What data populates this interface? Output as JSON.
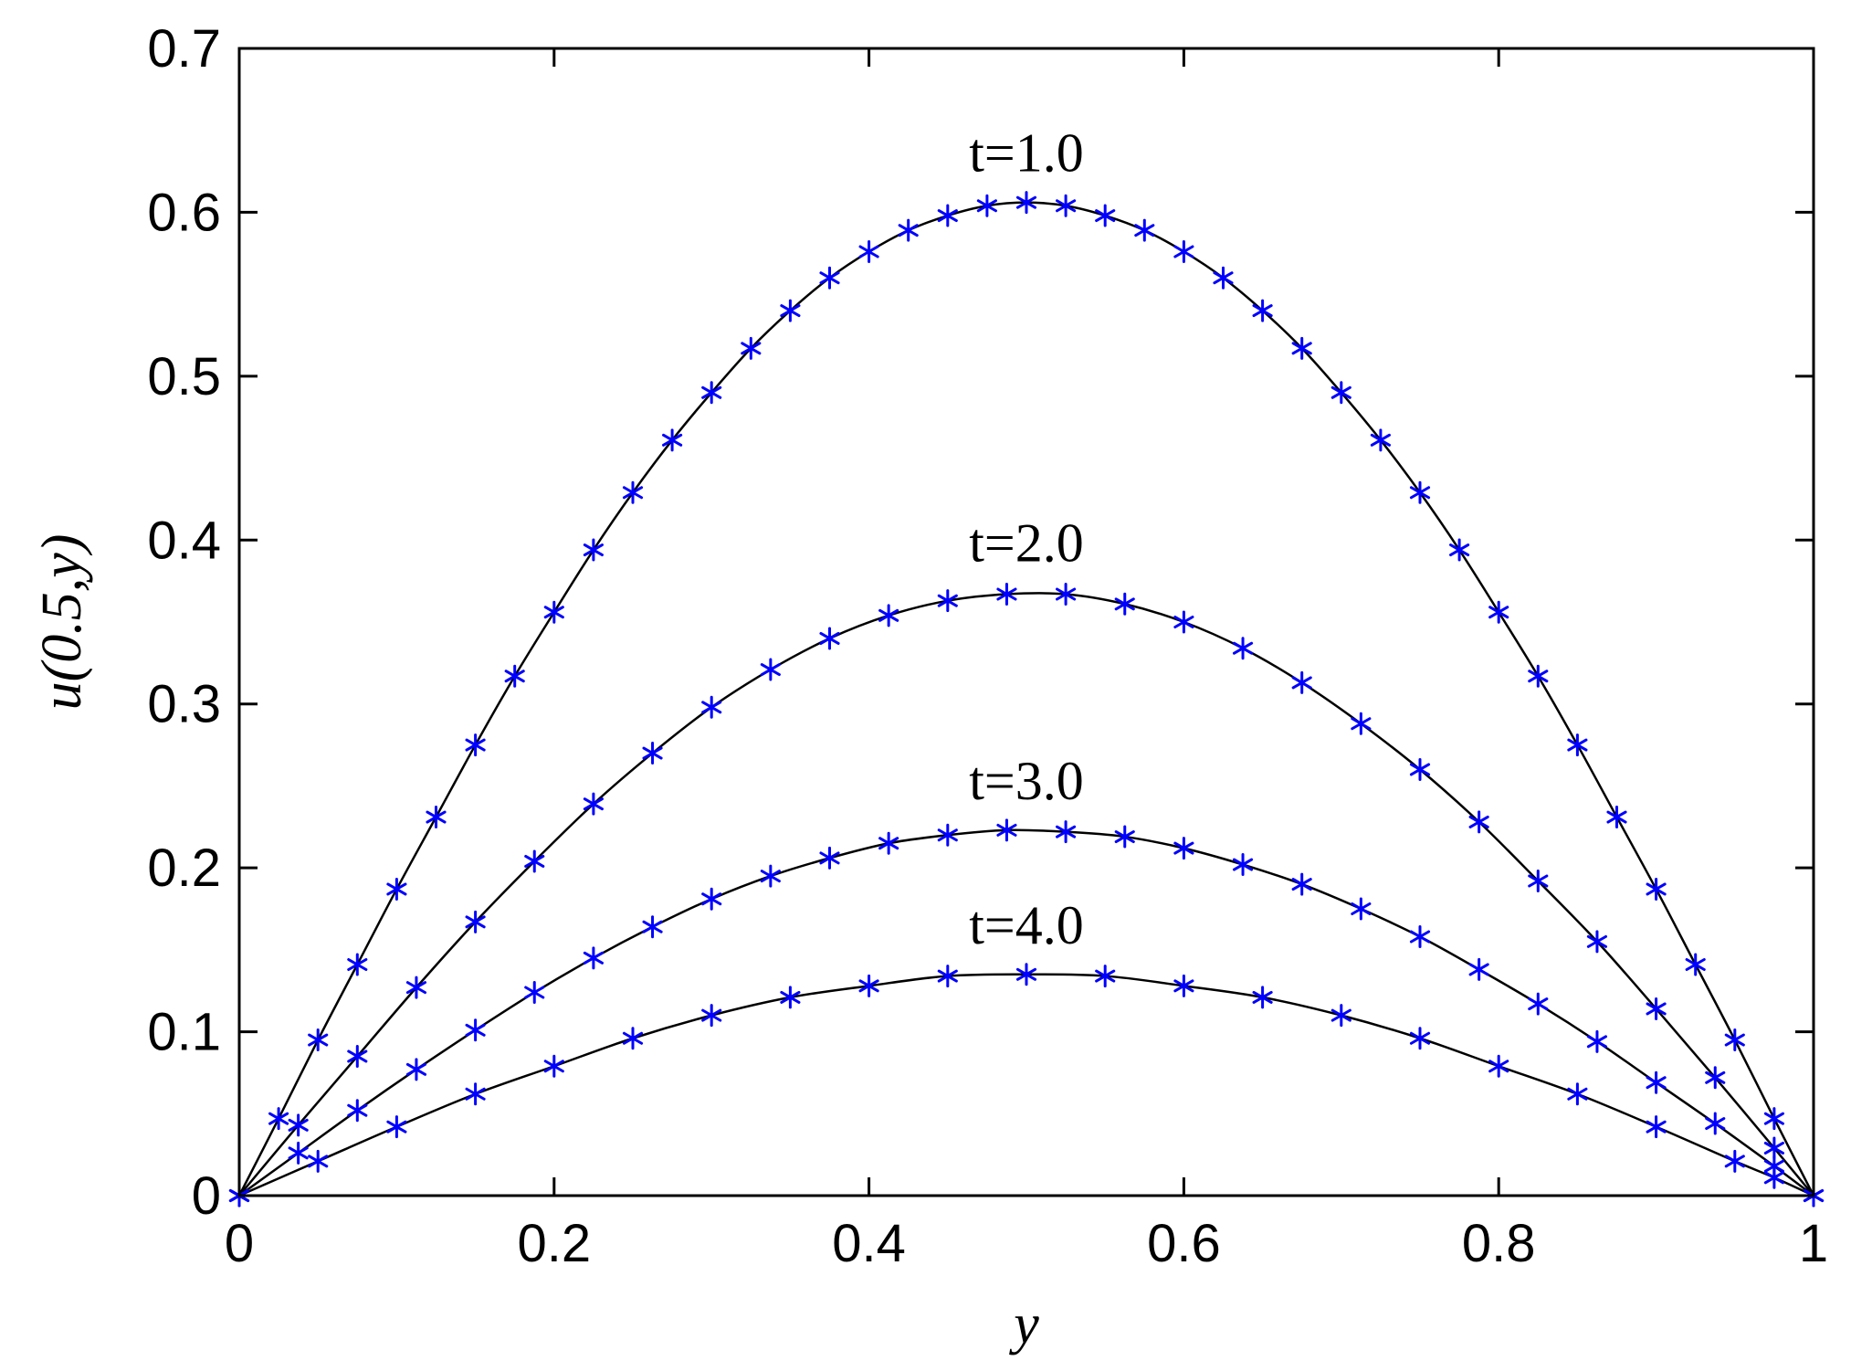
{
  "chart_data": {
    "type": "line",
    "title": "",
    "xlabel": "y",
    "ylabel": "u(0.5,y)",
    "xlim": [
      0,
      1
    ],
    "ylim": [
      0,
      0.7
    ],
    "xticks": [
      0,
      0.2,
      0.4,
      0.6,
      0.8,
      1
    ],
    "xtick_labels": [
      "0",
      "0.2",
      "0.4",
      "0.6",
      "0.8",
      "1"
    ],
    "yticks": [
      0,
      0.1,
      0.2,
      0.3,
      0.4,
      0.5,
      0.6,
      0.7
    ],
    "ytick_labels": [
      "0",
      "0.1",
      "0.2",
      "0.3",
      "0.4",
      "0.5",
      "0.6",
      "0.7"
    ],
    "grid": false,
    "colors": {
      "line": "#000000",
      "marker": "#0000ff"
    },
    "series": [
      {
        "annotation": "t=1.0",
        "peak": 0.606,
        "marker_x": [
          0,
          0.025,
          0.05,
          0.075,
          0.1,
          0.125,
          0.15,
          0.175,
          0.2,
          0.225,
          0.25,
          0.275,
          0.3,
          0.325,
          0.35,
          0.375,
          0.4,
          0.425,
          0.45,
          0.475,
          0.5,
          0.525,
          0.55,
          0.575,
          0.6,
          0.625,
          0.65,
          0.675,
          0.7,
          0.725,
          0.75,
          0.775,
          0.8,
          0.825,
          0.85,
          0.875,
          0.9,
          0.925,
          0.95,
          0.975,
          1
        ],
        "marker_y": [
          0,
          0.047,
          0.095,
          0.141,
          0.187,
          0.231,
          0.275,
          0.317,
          0.356,
          0.394,
          0.429,
          0.461,
          0.49,
          0.517,
          0.54,
          0.56,
          0.576,
          0.589,
          0.598,
          0.604,
          0.606,
          0.604,
          0.598,
          0.589,
          0.576,
          0.56,
          0.54,
          0.517,
          0.49,
          0.461,
          0.429,
          0.394,
          0.356,
          0.317,
          0.275,
          0.231,
          0.187,
          0.141,
          0.095,
          0.047,
          0
        ]
      },
      {
        "annotation": "t=2.0",
        "peak": 0.368,
        "marker_x": [
          0,
          0.0375,
          0.075,
          0.1125,
          0.15,
          0.1875,
          0.225,
          0.2625,
          0.3,
          0.3375,
          0.375,
          0.4125,
          0.45,
          0.4875,
          0.525,
          0.5625,
          0.6,
          0.6375,
          0.675,
          0.7125,
          0.75,
          0.7875,
          0.825,
          0.8625,
          0.9,
          0.9375,
          0.975,
          1
        ],
        "marker_y": [
          0,
          0.043,
          0.085,
          0.127,
          0.167,
          0.204,
          0.239,
          0.27,
          0.298,
          0.321,
          0.34,
          0.354,
          0.363,
          0.367,
          0.367,
          0.361,
          0.35,
          0.334,
          0.313,
          0.288,
          0.26,
          0.228,
          0.192,
          0.155,
          0.114,
          0.072,
          0.029,
          0
        ]
      },
      {
        "annotation": "t=3.0",
        "peak": 0.223,
        "marker_x": [
          0,
          0.0375,
          0.075,
          0.1125,
          0.15,
          0.1875,
          0.225,
          0.2625,
          0.3,
          0.3375,
          0.375,
          0.4125,
          0.45,
          0.4875,
          0.525,
          0.5625,
          0.6,
          0.6375,
          0.675,
          0.7125,
          0.75,
          0.7875,
          0.825,
          0.8625,
          0.9,
          0.9375,
          0.975,
          1
        ],
        "marker_y": [
          0,
          0.026,
          0.052,
          0.077,
          0.101,
          0.124,
          0.145,
          0.164,
          0.181,
          0.195,
          0.206,
          0.215,
          0.22,
          0.223,
          0.222,
          0.219,
          0.212,
          0.202,
          0.19,
          0.175,
          0.158,
          0.138,
          0.117,
          0.094,
          0.069,
          0.044,
          0.018,
          0
        ]
      },
      {
        "annotation": "t=4.0",
        "peak": 0.135,
        "marker_x": [
          0,
          0.05,
          0.1,
          0.15,
          0.2,
          0.25,
          0.3,
          0.35,
          0.4,
          0.45,
          0.5,
          0.55,
          0.6,
          0.65,
          0.7,
          0.75,
          0.8,
          0.85,
          0.9,
          0.95,
          0.975,
          1
        ],
        "marker_y": [
          0,
          0.021,
          0.042,
          0.062,
          0.079,
          0.096,
          0.11,
          0.121,
          0.128,
          0.134,
          0.135,
          0.134,
          0.128,
          0.121,
          0.11,
          0.096,
          0.079,
          0.062,
          0.042,
          0.021,
          0.011,
          0
        ]
      }
    ]
  }
}
